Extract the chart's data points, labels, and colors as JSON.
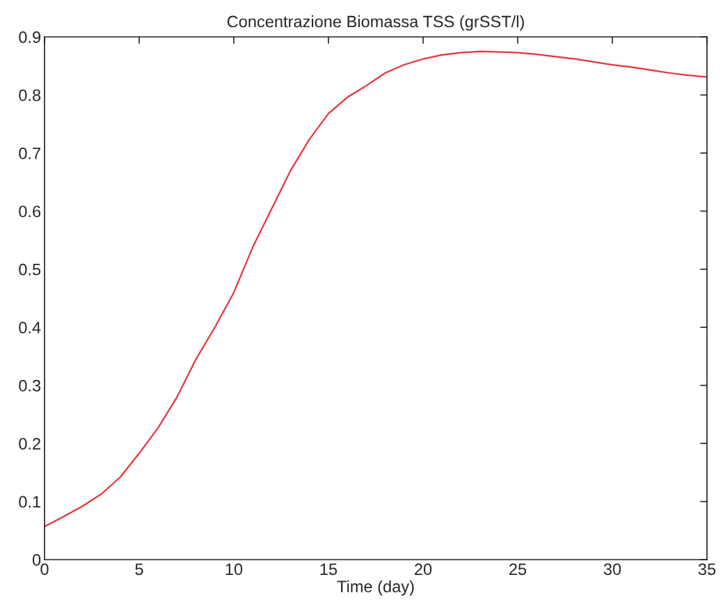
{
  "chart_data": {
    "type": "line",
    "title": "Concentrazione Biomassa TSS (grSST/l)",
    "xlabel": "Time (day)",
    "x": [
      0,
      1,
      2,
      3,
      4,
      5,
      6,
      7,
      8,
      9,
      10,
      11,
      12,
      13,
      14,
      15,
      16,
      17,
      18,
      19,
      20,
      21,
      22,
      23,
      24,
      25,
      26,
      27,
      28,
      29,
      30,
      31,
      32,
      33,
      34,
      35
    ],
    "series": [
      {
        "color": "#e8323a",
        "values": [
          0.057,
          0.074,
          0.092,
          0.113,
          0.142,
          0.183,
          0.227,
          0.28,
          0.345,
          0.4,
          0.46,
          0.538,
          0.604,
          0.67,
          0.724,
          0.768,
          0.796,
          0.816,
          0.838,
          0.852,
          0.862,
          0.869,
          0.873,
          0.875,
          0.874,
          0.873,
          0.87,
          0.866,
          0.862,
          0.857,
          0.852,
          0.848,
          0.843,
          0.838,
          0.834,
          0.831
        ]
      }
    ],
    "xlim": [
      0,
      35
    ],
    "ylim": [
      0,
      0.9
    ],
    "xticks": [
      0,
      5,
      10,
      15,
      20,
      25,
      30,
      35
    ],
    "yticks": [
      0,
      0.1,
      0.2,
      0.3,
      0.4,
      0.5,
      0.6,
      0.7,
      0.8,
      0.9
    ],
    "marker": "none",
    "line_style": "solid"
  }
}
